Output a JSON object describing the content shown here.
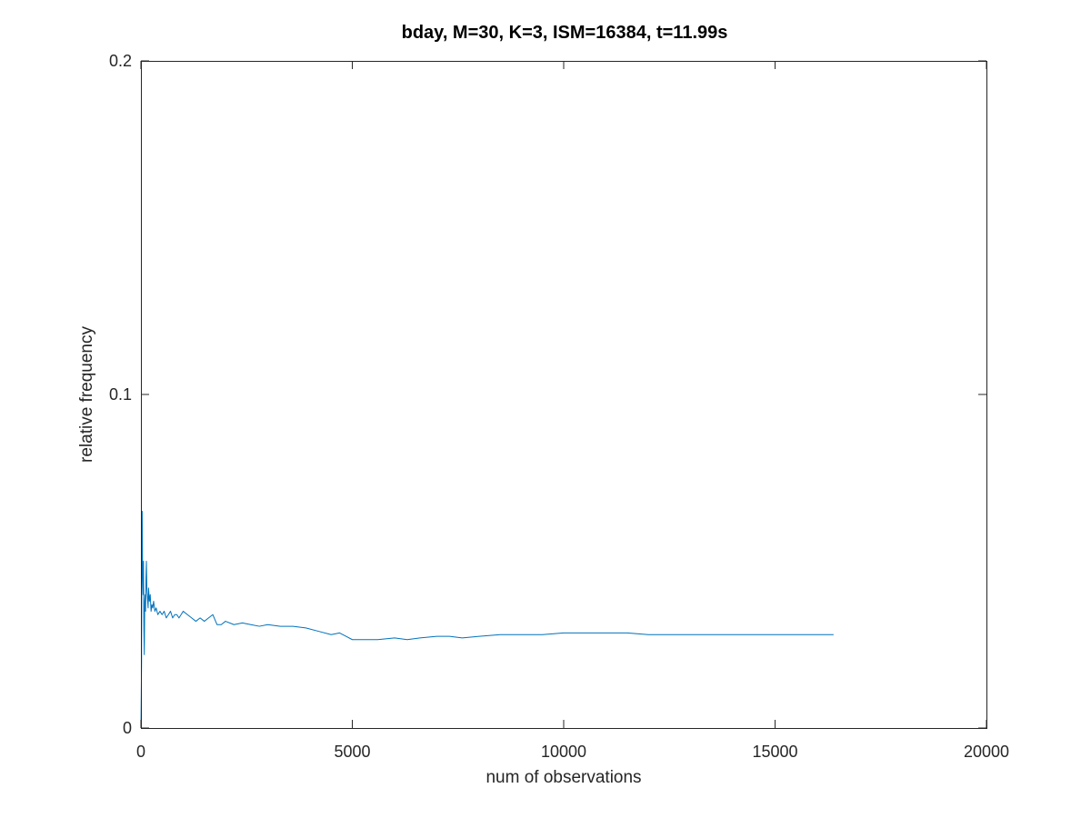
{
  "chart_data": {
    "type": "line",
    "title": "bday, M=30, K=3, ISM=16384, t=11.99s",
    "xlabel": "num of observations",
    "ylabel": "relative frequency",
    "xlim": [
      0,
      20000
    ],
    "ylim": [
      0,
      0.2
    ],
    "xticks": [
      0,
      5000,
      10000,
      15000,
      20000
    ],
    "xtick_labels": [
      "0",
      "5000",
      "10000",
      "15000",
      "20000"
    ],
    "yticks": [
      0,
      0.1,
      0.2
    ],
    "ytick_labels": [
      "0",
      "0.1",
      "0.2"
    ],
    "grid": false,
    "line_color": "#0072BD",
    "series": [
      {
        "x": [
          1,
          15,
          20,
          30,
          40,
          50,
          60,
          70,
          80,
          90,
          100,
          110,
          120,
          130,
          140,
          150,
          160,
          170,
          180,
          190,
          200,
          220,
          240,
          260,
          280,
          300,
          330,
          360,
          400,
          450,
          500,
          550,
          600,
          650,
          700,
          750,
          800,
          850,
          900,
          950,
          1000,
          1100,
          1200,
          1300,
          1400,
          1500,
          1600,
          1700,
          1800,
          1900,
          2000,
          2200,
          2400,
          2600,
          2800,
          3000,
          3300,
          3600,
          3900,
          4200,
          4500,
          4700,
          5000,
          5300,
          5600,
          6000,
          6300,
          6600,
          7000,
          7300,
          7600,
          8000,
          8500,
          9000,
          9500,
          10000,
          10500,
          11000,
          11500,
          12000,
          12500,
          13000,
          13500,
          14000,
          14500,
          15000,
          15500,
          16000,
          16384
        ],
        "y": [
          0,
          0.02,
          0.055,
          0.065,
          0.045,
          0.04,
          0.05,
          0.03,
          0.022,
          0.038,
          0.04,
          0.035,
          0.045,
          0.05,
          0.042,
          0.04,
          0.038,
          0.036,
          0.042,
          0.04,
          0.038,
          0.04,
          0.035,
          0.037,
          0.036,
          0.038,
          0.035,
          0.036,
          0.034,
          0.035,
          0.034,
          0.035,
          0.033,
          0.034,
          0.035,
          0.033,
          0.034,
          0.034,
          0.033,
          0.034,
          0.035,
          0.034,
          0.033,
          0.032,
          0.033,
          0.032,
          0.033,
          0.034,
          0.031,
          0.031,
          0.032,
          0.031,
          0.0315,
          0.031,
          0.0305,
          0.031,
          0.0305,
          0.0305,
          0.03,
          0.029,
          0.028,
          0.0285,
          0.0265,
          0.0265,
          0.0265,
          0.027,
          0.0265,
          0.027,
          0.0275,
          0.0275,
          0.027,
          0.0275,
          0.028,
          0.028,
          0.028,
          0.0285,
          0.0285,
          0.0285,
          0.0285,
          0.028,
          0.028,
          0.028,
          0.028,
          0.028,
          0.028,
          0.028,
          0.028,
          0.028,
          0.028
        ]
      }
    ]
  }
}
